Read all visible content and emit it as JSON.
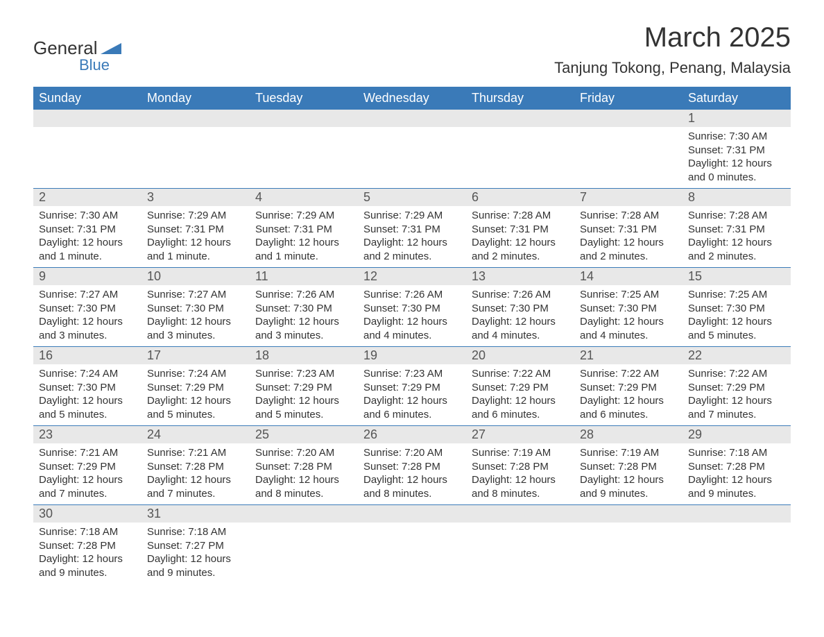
{
  "logo": {
    "word1": "General",
    "word2": "Blue",
    "accent_color": "#3a7ab8"
  },
  "title": "March 2025",
  "location": "Tanjung Tokong, Penang, Malaysia",
  "colors": {
    "header_bg": "#3a7ab8",
    "header_text": "#ffffff",
    "band_bg": "#e8e8e8",
    "row_divider": "#3a7ab8",
    "body_text": "#333333",
    "page_bg": "#ffffff"
  },
  "typography": {
    "title_fontsize": 40,
    "location_fontsize": 22,
    "weekday_fontsize": 18,
    "daynum_fontsize": 18,
    "body_fontsize": 15
  },
  "layout": {
    "columns": 7,
    "rows": 6
  },
  "weekdays": [
    "Sunday",
    "Monday",
    "Tuesday",
    "Wednesday",
    "Thursday",
    "Friday",
    "Saturday"
  ],
  "weeks": [
    [
      null,
      null,
      null,
      null,
      null,
      null,
      {
        "n": "1",
        "sr": "Sunrise: 7:30 AM",
        "ss": "Sunset: 7:31 PM",
        "dl1": "Daylight: 12 hours",
        "dl2": "and 0 minutes."
      }
    ],
    [
      {
        "n": "2",
        "sr": "Sunrise: 7:30 AM",
        "ss": "Sunset: 7:31 PM",
        "dl1": "Daylight: 12 hours",
        "dl2": "and 1 minute."
      },
      {
        "n": "3",
        "sr": "Sunrise: 7:29 AM",
        "ss": "Sunset: 7:31 PM",
        "dl1": "Daylight: 12 hours",
        "dl2": "and 1 minute."
      },
      {
        "n": "4",
        "sr": "Sunrise: 7:29 AM",
        "ss": "Sunset: 7:31 PM",
        "dl1": "Daylight: 12 hours",
        "dl2": "and 1 minute."
      },
      {
        "n": "5",
        "sr": "Sunrise: 7:29 AM",
        "ss": "Sunset: 7:31 PM",
        "dl1": "Daylight: 12 hours",
        "dl2": "and 2 minutes."
      },
      {
        "n": "6",
        "sr": "Sunrise: 7:28 AM",
        "ss": "Sunset: 7:31 PM",
        "dl1": "Daylight: 12 hours",
        "dl2": "and 2 minutes."
      },
      {
        "n": "7",
        "sr": "Sunrise: 7:28 AM",
        "ss": "Sunset: 7:31 PM",
        "dl1": "Daylight: 12 hours",
        "dl2": "and 2 minutes."
      },
      {
        "n": "8",
        "sr": "Sunrise: 7:28 AM",
        "ss": "Sunset: 7:31 PM",
        "dl1": "Daylight: 12 hours",
        "dl2": "and 2 minutes."
      }
    ],
    [
      {
        "n": "9",
        "sr": "Sunrise: 7:27 AM",
        "ss": "Sunset: 7:30 PM",
        "dl1": "Daylight: 12 hours",
        "dl2": "and 3 minutes."
      },
      {
        "n": "10",
        "sr": "Sunrise: 7:27 AM",
        "ss": "Sunset: 7:30 PM",
        "dl1": "Daylight: 12 hours",
        "dl2": "and 3 minutes."
      },
      {
        "n": "11",
        "sr": "Sunrise: 7:26 AM",
        "ss": "Sunset: 7:30 PM",
        "dl1": "Daylight: 12 hours",
        "dl2": "and 3 minutes."
      },
      {
        "n": "12",
        "sr": "Sunrise: 7:26 AM",
        "ss": "Sunset: 7:30 PM",
        "dl1": "Daylight: 12 hours",
        "dl2": "and 4 minutes."
      },
      {
        "n": "13",
        "sr": "Sunrise: 7:26 AM",
        "ss": "Sunset: 7:30 PM",
        "dl1": "Daylight: 12 hours",
        "dl2": "and 4 minutes."
      },
      {
        "n": "14",
        "sr": "Sunrise: 7:25 AM",
        "ss": "Sunset: 7:30 PM",
        "dl1": "Daylight: 12 hours",
        "dl2": "and 4 minutes."
      },
      {
        "n": "15",
        "sr": "Sunrise: 7:25 AM",
        "ss": "Sunset: 7:30 PM",
        "dl1": "Daylight: 12 hours",
        "dl2": "and 5 minutes."
      }
    ],
    [
      {
        "n": "16",
        "sr": "Sunrise: 7:24 AM",
        "ss": "Sunset: 7:30 PM",
        "dl1": "Daylight: 12 hours",
        "dl2": "and 5 minutes."
      },
      {
        "n": "17",
        "sr": "Sunrise: 7:24 AM",
        "ss": "Sunset: 7:29 PM",
        "dl1": "Daylight: 12 hours",
        "dl2": "and 5 minutes."
      },
      {
        "n": "18",
        "sr": "Sunrise: 7:23 AM",
        "ss": "Sunset: 7:29 PM",
        "dl1": "Daylight: 12 hours",
        "dl2": "and 5 minutes."
      },
      {
        "n": "19",
        "sr": "Sunrise: 7:23 AM",
        "ss": "Sunset: 7:29 PM",
        "dl1": "Daylight: 12 hours",
        "dl2": "and 6 minutes."
      },
      {
        "n": "20",
        "sr": "Sunrise: 7:22 AM",
        "ss": "Sunset: 7:29 PM",
        "dl1": "Daylight: 12 hours",
        "dl2": "and 6 minutes."
      },
      {
        "n": "21",
        "sr": "Sunrise: 7:22 AM",
        "ss": "Sunset: 7:29 PM",
        "dl1": "Daylight: 12 hours",
        "dl2": "and 6 minutes."
      },
      {
        "n": "22",
        "sr": "Sunrise: 7:22 AM",
        "ss": "Sunset: 7:29 PM",
        "dl1": "Daylight: 12 hours",
        "dl2": "and 7 minutes."
      }
    ],
    [
      {
        "n": "23",
        "sr": "Sunrise: 7:21 AM",
        "ss": "Sunset: 7:29 PM",
        "dl1": "Daylight: 12 hours",
        "dl2": "and 7 minutes."
      },
      {
        "n": "24",
        "sr": "Sunrise: 7:21 AM",
        "ss": "Sunset: 7:28 PM",
        "dl1": "Daylight: 12 hours",
        "dl2": "and 7 minutes."
      },
      {
        "n": "25",
        "sr": "Sunrise: 7:20 AM",
        "ss": "Sunset: 7:28 PM",
        "dl1": "Daylight: 12 hours",
        "dl2": "and 8 minutes."
      },
      {
        "n": "26",
        "sr": "Sunrise: 7:20 AM",
        "ss": "Sunset: 7:28 PM",
        "dl1": "Daylight: 12 hours",
        "dl2": "and 8 minutes."
      },
      {
        "n": "27",
        "sr": "Sunrise: 7:19 AM",
        "ss": "Sunset: 7:28 PM",
        "dl1": "Daylight: 12 hours",
        "dl2": "and 8 minutes."
      },
      {
        "n": "28",
        "sr": "Sunrise: 7:19 AM",
        "ss": "Sunset: 7:28 PM",
        "dl1": "Daylight: 12 hours",
        "dl2": "and 9 minutes."
      },
      {
        "n": "29",
        "sr": "Sunrise: 7:18 AM",
        "ss": "Sunset: 7:28 PM",
        "dl1": "Daylight: 12 hours",
        "dl2": "and 9 minutes."
      }
    ],
    [
      {
        "n": "30",
        "sr": "Sunrise: 7:18 AM",
        "ss": "Sunset: 7:28 PM",
        "dl1": "Daylight: 12 hours",
        "dl2": "and 9 minutes."
      },
      {
        "n": "31",
        "sr": "Sunrise: 7:18 AM",
        "ss": "Sunset: 7:27 PM",
        "dl1": "Daylight: 12 hours",
        "dl2": "and 9 minutes."
      },
      null,
      null,
      null,
      null,
      null
    ]
  ]
}
